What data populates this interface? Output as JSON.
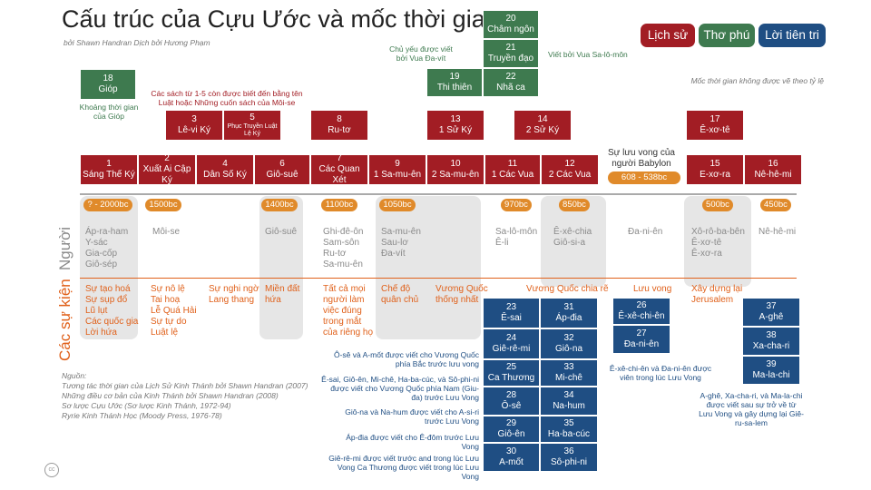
{
  "title": "Cấu trúc của Cựu Ước và mốc thời gian",
  "subtitle": "bởi Shawn Handran Dịch bởi Hương Phạm",
  "legend": {
    "history": "Lịch sử",
    "poetry": "Thơ phú",
    "prophecy": "Lời tiên tri"
  },
  "scale_note": "Mốc thời gian không được vẽ theo tỷ lệ",
  "history_books": [
    {
      "num": "1",
      "name": "Sáng Thế Ký"
    },
    {
      "num": "2",
      "name": "Xuất Ai Cập Ký"
    },
    {
      "num": "4",
      "name": "Dân Số Ký"
    },
    {
      "num": "6",
      "name": "Giô-suê"
    },
    {
      "num": "7",
      "name": "Các Quan Xét"
    },
    {
      "num": "9",
      "name": "1 Sa-mu-ên"
    },
    {
      "num": "10",
      "name": "2 Sa-mu-ên"
    },
    {
      "num": "11",
      "name": "1 Các Vua"
    },
    {
      "num": "12",
      "name": "2 Các Vua"
    },
    {
      "num": "15",
      "name": "E-xơ-ra"
    },
    {
      "num": "16",
      "name": "Nê-hê-mi"
    }
  ],
  "upper_books": [
    {
      "num": "3",
      "name": "Lê-vi Ký"
    },
    {
      "num": "5",
      "name": "Phục Truyền Luật Lệ Ký"
    },
    {
      "num": "8",
      "name": "Ru-tơ"
    },
    {
      "num": "13",
      "name": "1 Sử Ký"
    },
    {
      "num": "14",
      "name": "2 Sử Ký"
    },
    {
      "num": "17",
      "name": "Ê-xơ-tê"
    }
  ],
  "job": {
    "num": "18",
    "name": "Gióp"
  },
  "poetry": [
    {
      "num": "19",
      "name": "Thi thiên"
    },
    {
      "num": "20",
      "name": "Châm ngôn"
    },
    {
      "num": "21",
      "name": "Truyền đạo"
    },
    {
      "num": "22",
      "name": "Nhã ca"
    }
  ],
  "notes": {
    "job": "Khoảng thời gian của Gióp",
    "moses": "Các sách từ 1-5 còn được biết đến bằng tên Luật hoặc Những cuốn sách của Môi-se",
    "david": "Chủ yếu được viết bởi Vua Đa-vít",
    "solomon": "Viết bởi Vua Sa-lô-môn",
    "exile": "Sự lưu vong của người Babylon",
    "exile_dates": "608 - 538bc"
  },
  "dates": [
    "? - 2000bc",
    "1500bc",
    "1400bc",
    "1100bc",
    "1050bc",
    "970bc",
    "850bc",
    "500bc",
    "450bc"
  ],
  "row_labels": {
    "people": "Người",
    "events": "Các sự kiện"
  },
  "people": [
    "Áp-ra-ham\nY-sác\nGia-cốp\nGiô-sép",
    "Môi-se",
    "Giô-suê",
    "Ghi-đê-ôn\nSam-sôn\nRu-tơ\nSa-mu-ên",
    "Sa-mu-ên\nSau-lơ\nĐa-vít",
    "Sa-lô-môn\nÊ-li",
    "Ê-xê-chia\nGiô-si-a",
    "Đa-ni-ên",
    "Xô-rô-ba-bên\nÊ-xơ-tê\nÊ-xơ-ra",
    "Nê-hê-mi"
  ],
  "events": [
    "Sự tạo hoá\nSự sụp đổ\nLũ lụt\nCác quốc gia\nLời hứa",
    "Sự nô lệ\nTai hoạ\nLễ Quá Hải\nSự tự do\nLuật lệ",
    "Sự nghi ngờ\nLang thang",
    "Miền đất\nhứa",
    "Tất cả mọi\nngười làm\nviệc đúng\ntrong mắt\ncủa riêng họ",
    "Chế độ\nquân chủ",
    "Vương Quốc\nthống nhất",
    "Vương Quốc chia rẽ",
    "Lưu vong",
    "Xây dựng lại\nJerusalem"
  ],
  "prophets_a": [
    {
      "num": "23",
      "name": "Ê-sai"
    },
    {
      "num": "24",
      "name": "Giê-rê-mi"
    },
    {
      "num": "25",
      "name": "Ca Thương"
    },
    {
      "num": "28",
      "name": "Ô-sê"
    },
    {
      "num": "29",
      "name": "Giô-ên"
    },
    {
      "num": "30",
      "name": "A-mốt"
    }
  ],
  "prophets_b": [
    {
      "num": "31",
      "name": "Áp-đia"
    },
    {
      "num": "32",
      "name": "Giô-na"
    },
    {
      "num": "33",
      "name": "Mi-chê"
    },
    {
      "num": "34",
      "name": "Na-hum"
    },
    {
      "num": "35",
      "name": "Ha-ba-cúc"
    },
    {
      "num": "36",
      "name": "Sô-phi-ni"
    }
  ],
  "prophets_c": [
    {
      "num": "26",
      "name": "Ê-xê-chi-ên"
    },
    {
      "num": "27",
      "name": "Đa-ni-ên"
    }
  ],
  "prophets_d": [
    {
      "num": "37",
      "name": "A-ghê"
    },
    {
      "num": "38",
      "name": "Xa-cha-ri"
    },
    {
      "num": "39",
      "name": "Ma-la-chi"
    }
  ],
  "prophet_notes": [
    "Ô-sê và A-mốt được viết cho Vương Quốc phía Bắc trước lưu vong",
    "Ê-sai, Giô-ên, Mi-chê, Ha-ba-cúc, và Sô-phi-ni được viết cho Vương Quốc phía Nam (Giu-đa) trước Lưu Vong",
    "Giô-na và Na-hum được viết cho A-si-ri trước Lưu Vong",
    "Áp-đia được viết cho Ê-đôm trước Lưu Vong",
    "Giê-rê-mi được viết trước and trong lúc Lưu Vong Ca Thương được viết trong lúc Lưu Vong",
    "Ê-xê-chi-ên và Đa-ni-ên được viên trong lúc Lưu Vong",
    "A-ghê, Xa-cha-ri, và Ma-la-chi được viết sau sự trở về từ Lưu Vong và gây dựng lại Giê-ru-sa-lem"
  ],
  "sources": {
    "heading": "Nguồn:",
    "lines": [
      "Tương tác thời gian của Lịch Sử Kinh Thánh bởi Shawn Handran (2007)",
      "Những điều cơ bản của Kinh Thánh bởi Shawn Handran (2008)",
      "Sơ lược Cựu Ước (Sơ lược Kinh Thánh, 1972-94)",
      "Ryrie Kinh Thánh Học (Moody Press, 1976-78)"
    ]
  },
  "cc": "cc"
}
